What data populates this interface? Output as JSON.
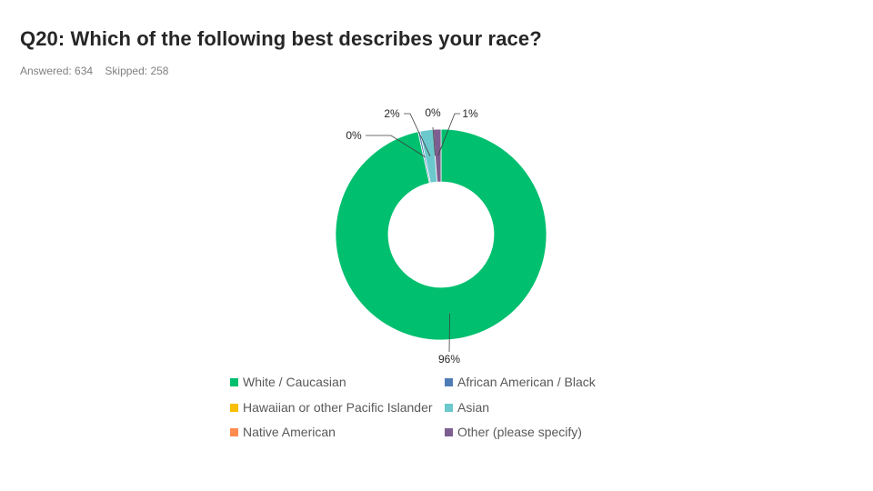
{
  "header": {
    "title": "Q20: Which of the following best describes your race?",
    "answered": "Answered: 634",
    "skipped": "Skipped: 258"
  },
  "chart_data": {
    "type": "pie",
    "variant": "donut",
    "legend_position": "bottom",
    "categories": [
      "White / Caucasian",
      "African American / Black",
      "Hawaiian or other Pacific Islander",
      "Asian",
      "Native American",
      "Other (please specify)"
    ],
    "values": [
      96.5,
      0.3,
      0.0,
      2.0,
      0.0,
      1.2
    ],
    "data_labels": [
      "96%",
      "0%",
      "0%",
      "2%",
      "0%",
      "1%"
    ],
    "colors": [
      "#00BF6F",
      "#507CB6",
      "#F9BE00",
      "#6BC8CD",
      "#FF8B4F",
      "#7D5E90"
    ]
  }
}
